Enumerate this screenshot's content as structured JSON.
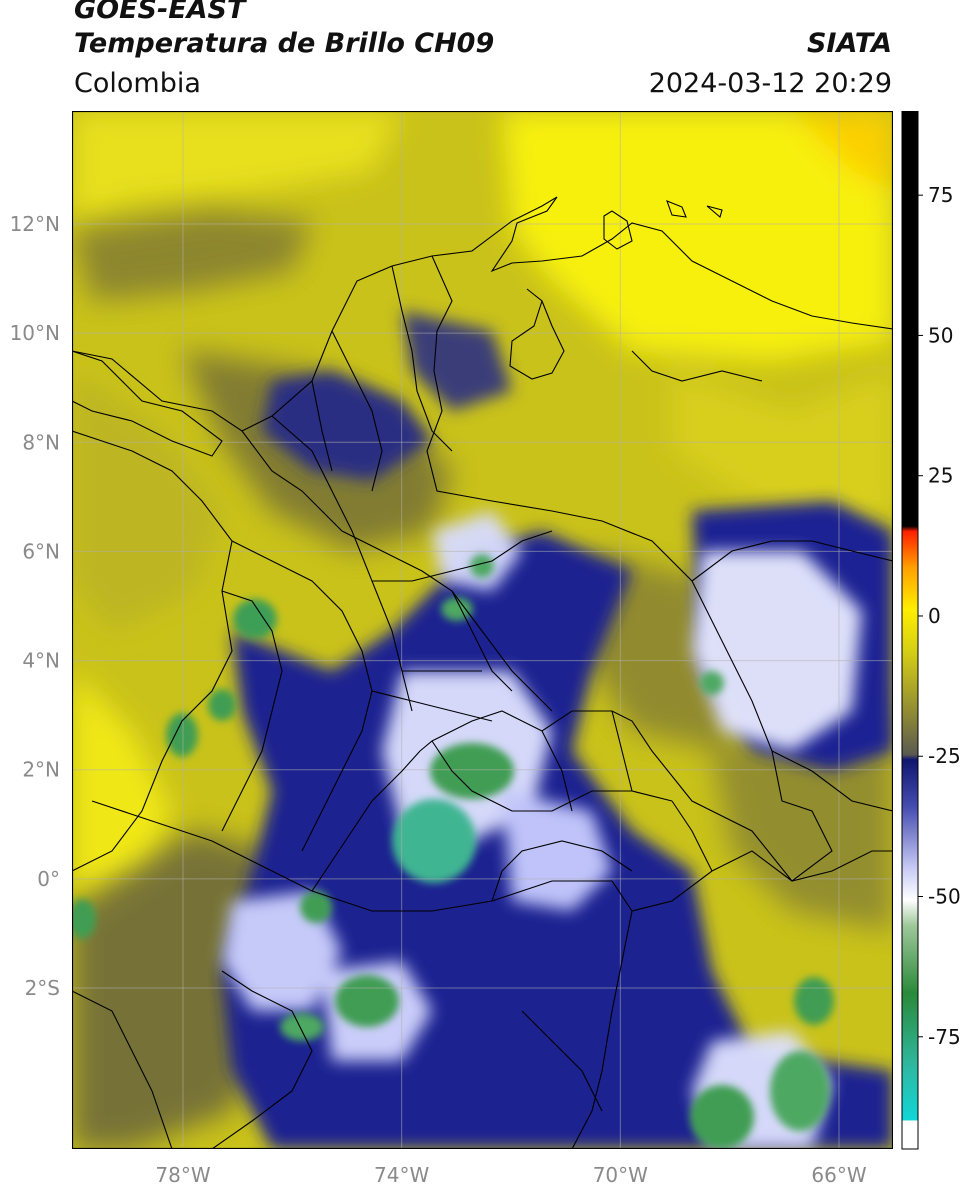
{
  "header": {
    "satellite": "GOES-EAST",
    "product": "Temperatura de Brillo CH09",
    "region": "Colombia",
    "source": "SIATA",
    "timestamp": "2024-03-12 20:29"
  },
  "map": {
    "lon_range": [
      -80,
      -65
    ],
    "lat_range": [
      -5,
      14
    ],
    "lat_ticks": [
      {
        "value": 12,
        "label": "12°N"
      },
      {
        "value": 10,
        "label": "10°N"
      },
      {
        "value": 8,
        "label": "8°N"
      },
      {
        "value": 6,
        "label": "6°N"
      },
      {
        "value": 4,
        "label": "4°N"
      },
      {
        "value": 2,
        "label": "2°N"
      },
      {
        "value": 0,
        "label": "0°"
      },
      {
        "value": -2,
        "label": "2°S"
      }
    ],
    "lon_ticks": [
      {
        "value": -78,
        "label": "78°W"
      },
      {
        "value": -74,
        "label": "74°W"
      },
      {
        "value": -70,
        "label": "70°W"
      },
      {
        "value": -66,
        "label": "66°W"
      }
    ],
    "colors": {
      "warm": "#f4ee10",
      "mid": "#a7a21d",
      "gray": "#5f5f44",
      "cold": "#1a1f8c",
      "white": "#eef0ff",
      "green": "#3a9a4a",
      "teal": "#39b890"
    }
  },
  "colorbar": {
    "range": [
      -95,
      90
    ],
    "ticks": [
      {
        "value": 75,
        "label": "75"
      },
      {
        "value": 50,
        "label": "50"
      },
      {
        "value": 25,
        "label": "25"
      },
      {
        "value": 0,
        "label": "0"
      },
      {
        "value": -25,
        "label": "-25"
      },
      {
        "value": -50,
        "label": "-50"
      },
      {
        "value": -75,
        "label": "-75"
      }
    ]
  }
}
